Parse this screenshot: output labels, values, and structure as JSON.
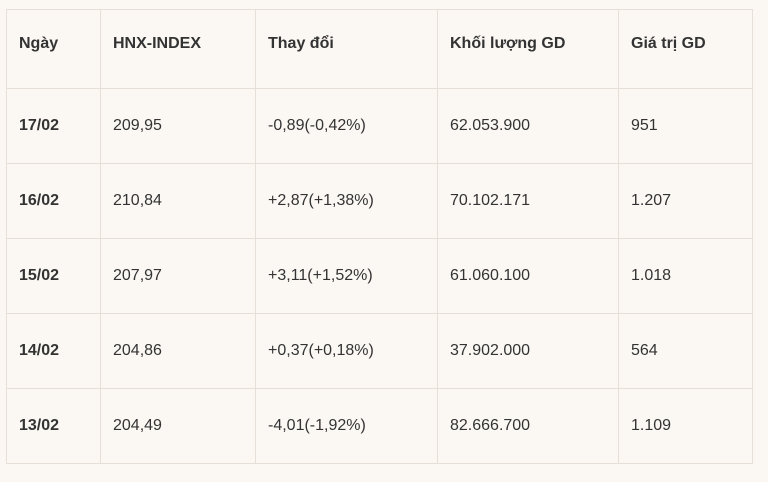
{
  "table": {
    "header": [
      "Ngày",
      "HNX-INDEX",
      "Thay đổi",
      "Khối lượng GD",
      "Giá trị GD"
    ],
    "rows": [
      [
        "17/02",
        "209,95",
        "-0,89(-0,42%)",
        "62.053.900",
        "951"
      ],
      [
        "16/02",
        "210,84",
        "+2,87(+1,38%)",
        "70.102.171",
        "1.207"
      ],
      [
        "15/02",
        "207,97",
        "+3,11(+1,52%)",
        "61.060.100",
        "1.018"
      ],
      [
        "14/02",
        "204,86",
        "+0,37(+0,18%)",
        "37.902.000",
        "564"
      ],
      [
        "13/02",
        "204,49",
        "-4,01(-1,92%)",
        "82.666.700",
        "1.109"
      ]
    ]
  }
}
